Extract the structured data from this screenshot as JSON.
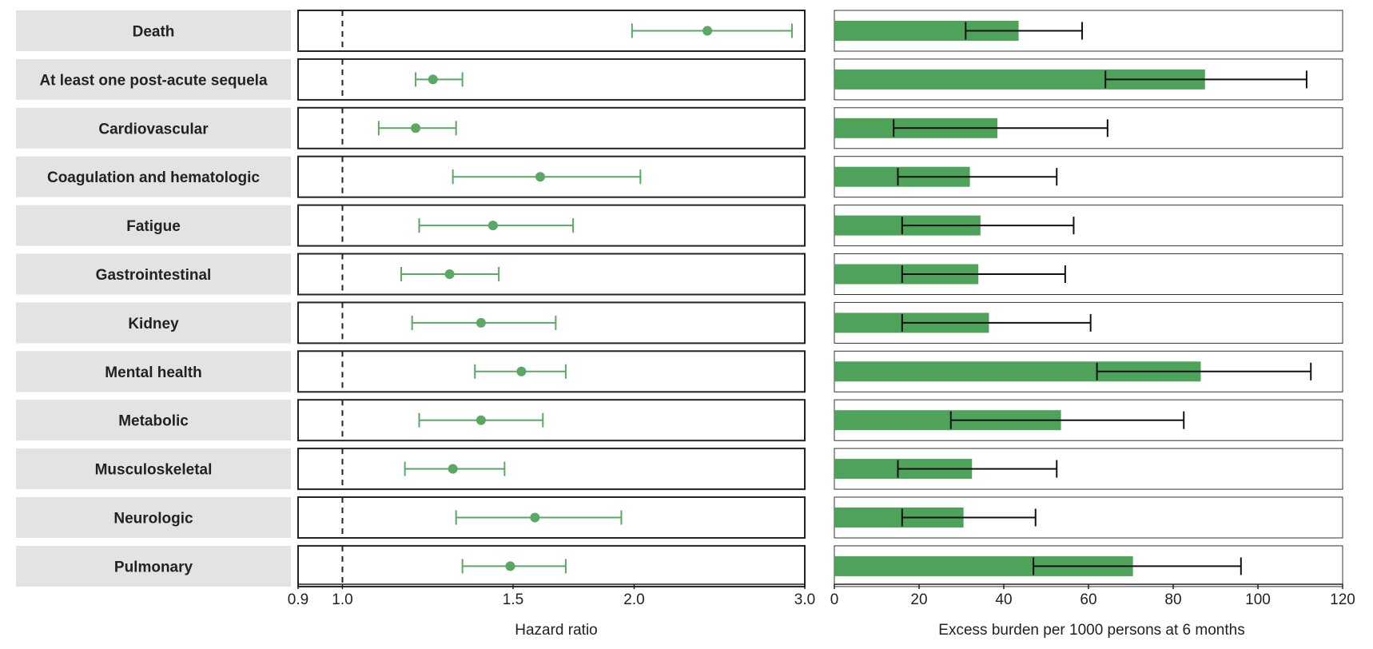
{
  "chart_data": [
    {
      "type": "scatter",
      "xlabel": "Hazard ratio",
      "xscale": "log",
      "xlim": [
        0.9,
        3.0
      ],
      "xticks": [
        "0.9",
        "1.0",
        "1.5",
        "2.0",
        "3.0"
      ],
      "reference_line": 1.0,
      "categories": [
        "Death",
        "At least one post-acute sequela",
        "Cardiovascular",
        "Coagulation and hematologic",
        "Fatigue",
        "Gastrointestinal",
        "Kidney",
        "Mental health",
        "Metabolic",
        "Musculoskeletal",
        "Neurologic",
        "Pulmonary"
      ],
      "series": [
        {
          "values": [
            2.38,
            1.24,
            1.19,
            1.6,
            1.43,
            1.29,
            1.39,
            1.53,
            1.39,
            1.3,
            1.58,
            1.49
          ],
          "ci_lower": [
            1.99,
            1.19,
            1.09,
            1.3,
            1.2,
            1.15,
            1.18,
            1.37,
            1.2,
            1.16,
            1.31,
            1.33
          ],
          "ci_upper": [
            2.91,
            1.33,
            1.31,
            2.03,
            1.73,
            1.45,
            1.66,
            1.7,
            1.61,
            1.47,
            1.94,
            1.7
          ],
          "color": "#5aa864"
        }
      ]
    },
    {
      "type": "bar",
      "xlabel": "Excess burden per 1000 persons at 6 months",
      "xlim": [
        0,
        120
      ],
      "xticks": [
        "0",
        "20",
        "40",
        "60",
        "80",
        "100",
        "120"
      ],
      "categories": [
        "Death",
        "At least one post-acute sequela",
        "Cardiovascular",
        "Coagulation and hematologic",
        "Fatigue",
        "Gastrointestinal",
        "Kidney",
        "Mental health",
        "Metabolic",
        "Musculoskeletal",
        "Neurologic",
        "Pulmonary"
      ],
      "series": [
        {
          "values": [
            43.5,
            87.5,
            38.5,
            32.0,
            34.5,
            34.0,
            36.5,
            86.5,
            53.5,
            32.5,
            30.5,
            70.5
          ],
          "ci_lower": [
            31.0,
            64.0,
            14.0,
            15.0,
            16.0,
            16.0,
            16.0,
            62.0,
            27.5,
            15.0,
            16.0,
            47.0
          ],
          "ci_upper": [
            58.5,
            111.5,
            64.5,
            52.5,
            56.5,
            54.5,
            60.5,
            112.5,
            82.5,
            52.5,
            47.5,
            96.0
          ],
          "color": "#4fa25a"
        }
      ]
    }
  ]
}
